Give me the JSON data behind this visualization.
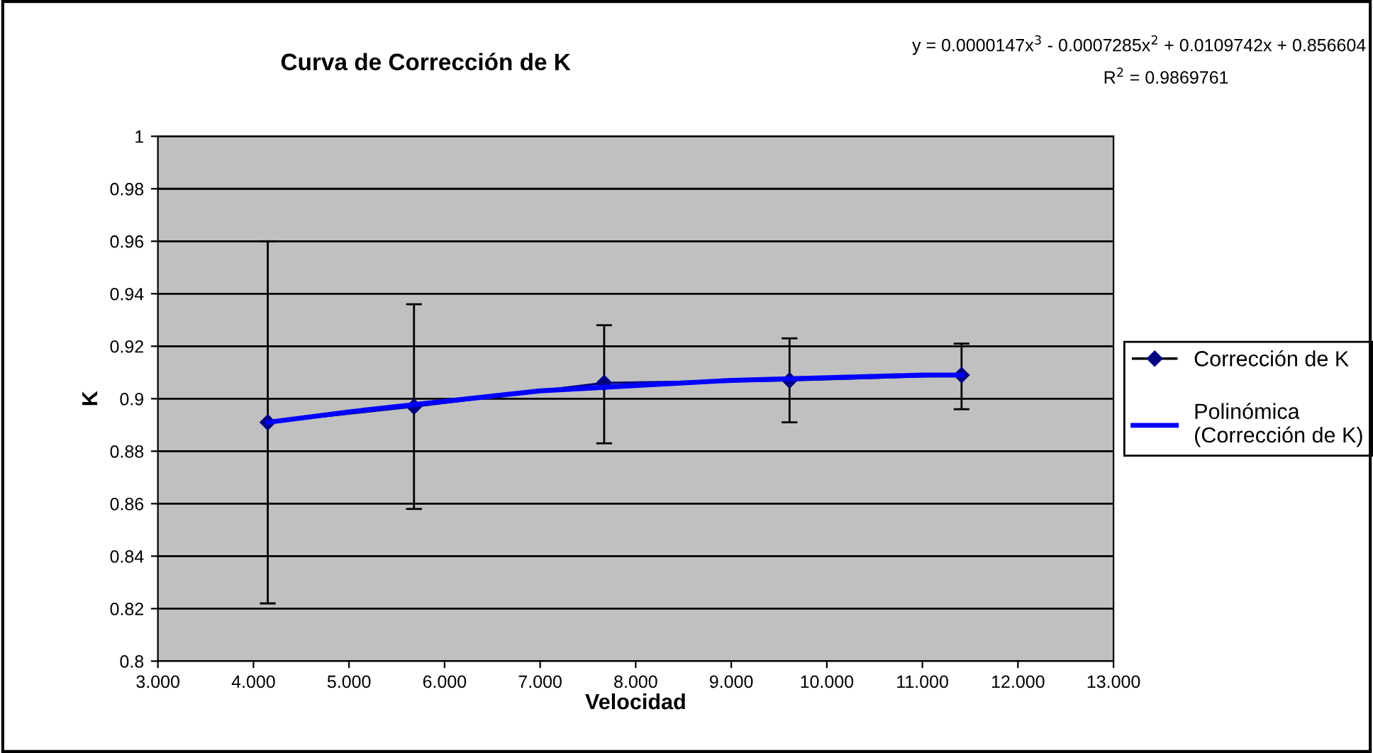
{
  "chart_data": {
    "type": "line",
    "title": "Curva de Corrección de K",
    "xlabel": "Velocidad",
    "ylabel": "K",
    "annotations": [
      "y = 0.0000147x$^{3}$ - 0.0007285x$^{2}$ + 0.0109742x + 0.856604",
      "R$^{2}$ = 0.9869761"
    ],
    "series": [
      {
        "name": "Corrección de K",
        "color": "#000080",
        "marker": "diamond",
        "x": [
          4.15,
          5.68,
          7.67,
          9.61,
          11.41
        ],
        "values": [
          0.891,
          0.897,
          0.906,
          0.907,
          0.909
        ],
        "errors": [
          [
            0.822,
            0.96
          ],
          [
            0.858,
            0.936
          ],
          [
            0.883,
            0.928
          ],
          [
            0.891,
            0.923
          ],
          [
            0.896,
            0.921
          ]
        ]
      },
      {
        "name": "Polinómica\n(Corrección de K)",
        "color": "#0000ff",
        "marker": "none",
        "x": [
          4.15,
          5,
          6,
          7,
          8,
          9,
          10,
          11,
          11.41
        ],
        "values": [
          0.891,
          0.895,
          0.899,
          0.903,
          0.905,
          0.907,
          0.908,
          0.909,
          0.909
        ]
      }
    ],
    "xlim": [
      3,
      13
    ],
    "xticks": [
      {
        "value": 3,
        "label": "3.000"
      },
      {
        "value": 4,
        "label": "4.000"
      },
      {
        "value": 5,
        "label": "5.000"
      },
      {
        "value": 6,
        "label": "6.000"
      },
      {
        "value": 7,
        "label": "7.000"
      },
      {
        "value": 8,
        "label": "8.000"
      },
      {
        "value": 9,
        "label": "9.000"
      },
      {
        "value": 10,
        "label": "10.000"
      },
      {
        "value": 11,
        "label": "11.000"
      },
      {
        "value": 12,
        "label": "12.000"
      },
      {
        "value": 13,
        "label": "13.000"
      }
    ],
    "ylim": [
      0.8,
      1
    ],
    "yticks": [
      0.8,
      0.82,
      0.84,
      0.86,
      0.88,
      0.9,
      0.92,
      0.94,
      0.96,
      0.98,
      1
    ],
    "grid": "y",
    "legend": "right"
  }
}
